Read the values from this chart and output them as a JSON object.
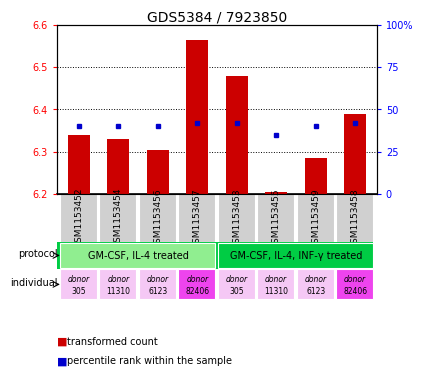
{
  "title": "GDS5384 / 7923850",
  "samples": [
    "GSM1153452",
    "GSM1153454",
    "GSM1153456",
    "GSM1153457",
    "GSM1153453",
    "GSM1153455",
    "GSM1153459",
    "GSM1153458"
  ],
  "transformed_counts": [
    6.34,
    6.33,
    6.305,
    6.565,
    6.48,
    6.205,
    6.285,
    6.39
  ],
  "percentile_ranks": [
    40,
    40,
    40,
    42,
    42,
    35,
    40,
    42
  ],
  "ylim": [
    6.2,
    6.6
  ],
  "yticks": [
    6.2,
    6.3,
    6.4,
    6.5,
    6.6
  ],
  "y2ticks": [
    0,
    25,
    50,
    75,
    100
  ],
  "bar_color": "#cc0000",
  "dot_color": "#0000cc",
  "bar_bottom": 6.2,
  "protocol_labels": [
    "GM-CSF, IL-4 treated",
    "GM-CSF, IL-4, INF-γ treated"
  ],
  "protocol_color_1": "#90ee90",
  "protocol_color_2": "#00cc44",
  "individual_colors": [
    "#f5c8f5",
    "#f5c8f5",
    "#f5c8f5",
    "#ee44ee",
    "#f5c8f5",
    "#f5c8f5",
    "#f5c8f5",
    "#ee44ee"
  ],
  "individual_donors": [
    [
      "donor",
      "305"
    ],
    [
      "donor",
      "11310"
    ],
    [
      "donor",
      "6123"
    ],
    [
      "donor",
      "82406"
    ],
    [
      "donor",
      "305"
    ],
    [
      "donor",
      "11310"
    ],
    [
      "donor",
      "6123"
    ],
    [
      "donor",
      "82406"
    ]
  ],
  "sample_bg_color": "#d0d0d0",
  "title_fontsize": 10,
  "tick_fontsize": 7,
  "small_fontsize": 6.5
}
